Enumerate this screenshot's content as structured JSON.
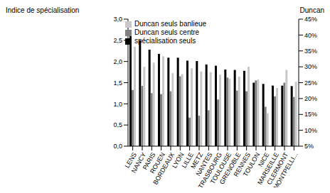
{
  "chart_data": {
    "type": "bar",
    "y_label": "Indice de spécialisation",
    "y2_label": "Duncan",
    "categories": [
      "LENS",
      "NANCY",
      "PARIS",
      "ROUEN",
      "BORDEAUX",
      "LYON",
      "LILLE",
      "METZ",
      "NANTES",
      "STRASBOURG",
      "TOULOUSE",
      "GRENOBLE",
      "RENNES",
      "TOULON",
      "NICE",
      "MARSEILLE",
      "CLERMONT",
      "MONTPELLI..."
    ],
    "series": [
      {
        "name": "spécialisation seuls",
        "color": "#000000",
        "values": [
          2.75,
          2.5,
          2.28,
          2.18,
          2.09,
          2.09,
          2.02,
          2.01,
          1.93,
          1.9,
          1.81,
          1.8,
          1.78,
          1.5,
          1.47,
          1.43,
          1.43,
          1.42
        ]
      },
      {
        "name": "Duncan seuls centre",
        "color": "#808080",
        "axis": "y2",
        "values": [
          22.7,
          24,
          21.7,
          21.4,
          22.3,
          27,
          14,
          14.6,
          16.3,
          19.7,
          26.6,
          22.5,
          22.3,
          25.7,
          17.4,
          20.7,
          25,
          20.5
        ]
      },
      {
        "name": "Duncan seuls banlieue",
        "color": "#c8c8c8",
        "axis": "y2",
        "values": [
          36.3,
          30,
          31.3,
          33.3,
          28,
          27.7,
          29.5,
          28.5,
          28.3,
          27.5,
          26.2,
          26.9,
          30,
          26,
          15.4,
          23.3,
          29,
          25.3
        ]
      }
    ],
    "ylim": [
      0,
      3
    ],
    "yticks": [
      {
        "value": 0,
        "label": "0,0"
      },
      {
        "value": 0.5,
        "label": "0,5"
      },
      {
        "value": 1,
        "label": "1,0"
      },
      {
        "value": 1.5,
        "label": "1,5"
      },
      {
        "value": 2,
        "label": "2,0"
      },
      {
        "value": 2.5,
        "label": "2,5"
      },
      {
        "value": 3,
        "label": "3,0"
      }
    ],
    "y2lim": [
      5,
      45
    ],
    "y2ticks": [
      {
        "value": 5,
        "label": "5%"
      },
      {
        "value": 10,
        "label": "10%"
      },
      {
        "value": 15,
        "label": "15%"
      },
      {
        "value": 20,
        "label": "20%"
      },
      {
        "value": 25,
        "label": "25%"
      },
      {
        "value": 30,
        "label": "30%"
      },
      {
        "value": 35,
        "label": "35%"
      },
      {
        "value": 40,
        "label": "40%"
      },
      {
        "value": 45,
        "label": "45%"
      }
    ],
    "legend": "top",
    "grid": false
  }
}
